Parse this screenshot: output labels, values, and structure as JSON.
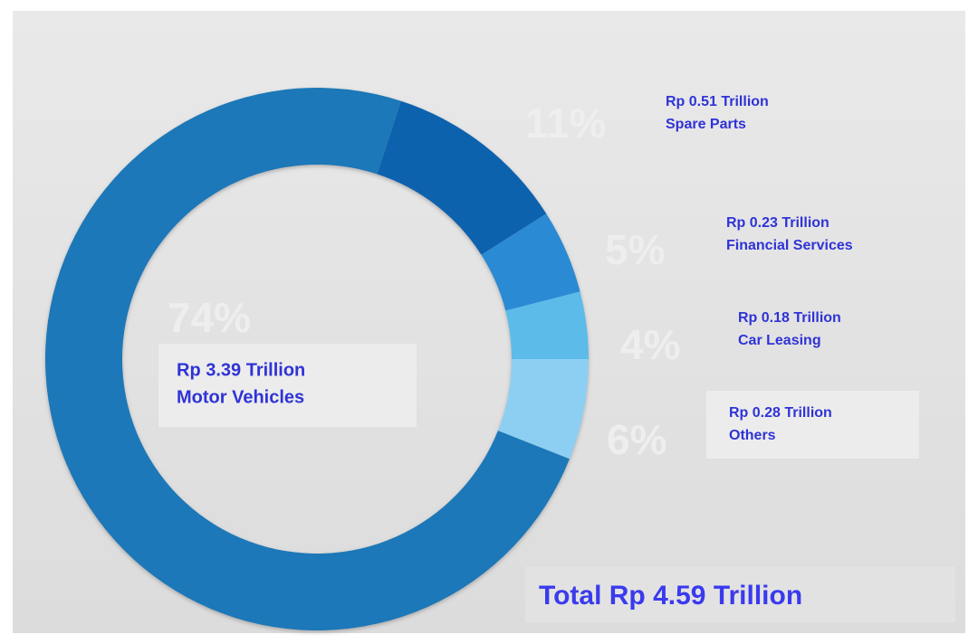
{
  "chart_data": {
    "type": "donut",
    "categories": [
      "Spare Parts",
      "Financial Services",
      "Car Leasing",
      "Others",
      "Motor Vehicles"
    ],
    "values": [
      11,
      5,
      4,
      6,
      74
    ],
    "value_labels": [
      "11%",
      "5%",
      "4%",
      "6%",
      "74%"
    ],
    "amount_labels": [
      "Rp 0.51 Trillion",
      "Rp 0.23 Trillion",
      "Rp 0.18 Trillion",
      "Rp 0.28 Trillion",
      "Rp 3.39 Trillion"
    ],
    "colors": [
      "#0a62ae",
      "#2a8ad4",
      "#5bbbe8",
      "#8dcff2",
      "#1a78b8"
    ],
    "total_label": "Total Rp 4.59 Trillion"
  }
}
